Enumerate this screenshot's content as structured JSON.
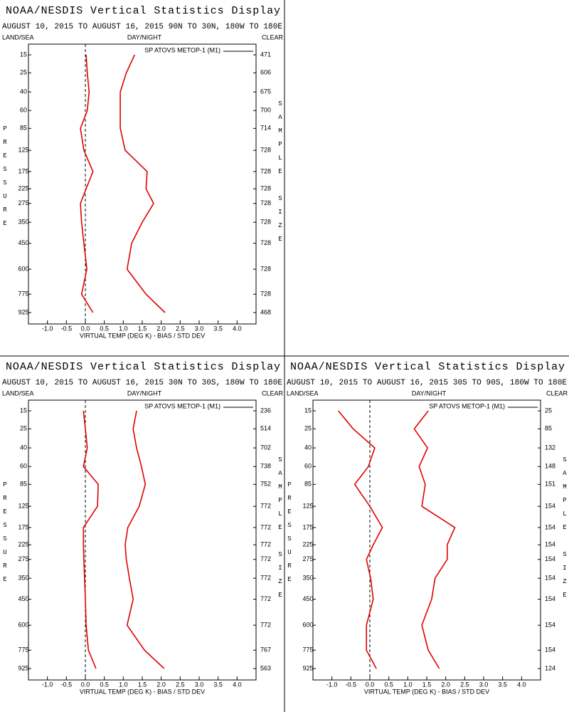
{
  "chart_data": [
    {
      "type": "line",
      "title": "NOAA/NESDIS Vertical Statistics Display",
      "subtitle": "AUGUST 10, 2015 TO AUGUST 16, 2015  90N TO 30N, 180W TO 180E",
      "labels": {
        "left": "LAND/SEA",
        "center": "DAY/NIGHT",
        "right": "CLEAR"
      },
      "ylabel": "PRESSURE",
      "y2label": "SAMPLE SIZE",
      "xlabel": "VIRTUAL TEMP (DEG K) - BIAS / STD DEV",
      "legend": "upper right",
      "categories": [
        15,
        25,
        40,
        60,
        85,
        125,
        175,
        225,
        275,
        350,
        450,
        600,
        775,
        925
      ],
      "ylim": [
        15,
        925
      ],
      "xlim": [
        -1.5,
        4.5
      ],
      "xticks": [
        {
          "value": -1,
          "label": "-1.0"
        },
        -0.5,
        {
          "value": 0,
          "label": "0.0"
        },
        0.5,
        {
          "value": 1,
          "label": "1.0"
        },
        1.5,
        {
          "value": 2,
          "label": "2.0"
        },
        2.5,
        {
          "value": 3,
          "label": "3.0"
        },
        3.5,
        {
          "value": 4,
          "label": "4.0"
        }
      ],
      "sample_size": [
        471,
        606,
        675,
        700,
        714,
        728,
        728,
        728,
        728,
        728,
        728,
        728,
        728,
        468
      ],
      "series": [
        {
          "name": "SP ATOVS METOP-1 (M1)",
          "color": "#e00000",
          "values": [
            0.02,
            0.05,
            0.1,
            0.05,
            -0.13,
            -0.04,
            0.2,
            0.02,
            -0.13,
            -0.1,
            -0.04,
            0.04,
            -0.1,
            0.2
          ]
        },
        {
          "color": "#e00000",
          "values": [
            1.3,
            1.08,
            0.92,
            0.92,
            0.92,
            1.05,
            1.63,
            1.6,
            1.8,
            1.5,
            1.22,
            1.1,
            1.6,
            2.1
          ]
        }
      ]
    },
    {
      "type": "line",
      "title": "NOAA/NESDIS Vertical Statistics Display",
      "subtitle": "AUGUST 10, 2015 TO AUGUST 16, 2015  30N TO 30S, 180W TO 180E",
      "labels": {
        "left": "LAND/SEA",
        "center": "DAY/NIGHT",
        "right": "CLEAR"
      },
      "ylabel": "PRESSURE",
      "y2label": "SAMPLE SIZE",
      "xlabel": "VIRTUAL TEMP (DEG K) - BIAS / STD DEV",
      "legend": "upper right",
      "categories": [
        15,
        25,
        40,
        60,
        85,
        125,
        175,
        225,
        275,
        350,
        450,
        600,
        775,
        925
      ],
      "ylim": [
        15,
        925
      ],
      "xlim": [
        -1.5,
        4.5
      ],
      "xticks": [
        {
          "value": -1,
          "label": "-1.0"
        },
        -0.5,
        {
          "value": 0,
          "label": "0.0"
        },
        0.5,
        {
          "value": 1,
          "label": "1.0"
        },
        1.5,
        {
          "value": 2,
          "label": "2.0"
        },
        2.5,
        {
          "value": 3,
          "label": "3.0"
        },
        3.5,
        {
          "value": 4,
          "label": "4.0"
        }
      ],
      "sample_size": [
        236,
        514,
        702,
        738,
        752,
        772,
        772,
        772,
        772,
        772,
        772,
        772,
        767,
        563
      ],
      "series": [
        {
          "name": "SP ATOVS METOP-1 (M1)",
          "color": "#e00000",
          "values": [
            -0.05,
            0,
            0.05,
            -0.05,
            0.34,
            0.32,
            -0.05,
            -0.05,
            -0.04,
            -0.02,
            0,
            0.02,
            0.08,
            0.28
          ]
        },
        {
          "color": "#e00000",
          "values": [
            1.35,
            1.26,
            1.35,
            1.48,
            1.58,
            1.42,
            1.12,
            1.05,
            1.08,
            1.16,
            1.26,
            1.1,
            1.56,
            2.08
          ]
        }
      ]
    },
    {
      "type": "line",
      "title": "NOAA/NESDIS Vertical Statistics Display",
      "subtitle": "AUGUST 10, 2015 TO AUGUST 16, 2015  30S TO 90S, 180W TO 180E",
      "labels": {
        "left": "LAND/SEA",
        "center": "DAY/NIGHT",
        "right": "CLEAR"
      },
      "ylabel": "PRESSURE",
      "y2label": "SAMPLE SIZE",
      "xlabel": "VIRTUAL TEMP (DEG K) - BIAS / STD DEV",
      "legend": "upper right",
      "categories": [
        15,
        25,
        40,
        60,
        85,
        125,
        175,
        225,
        275,
        350,
        450,
        600,
        775,
        925
      ],
      "ylim": [
        15,
        925
      ],
      "xlim": [
        -1.5,
        4.5
      ],
      "xticks": [
        {
          "value": -1,
          "label": "-1.0"
        },
        -0.5,
        {
          "value": 0,
          "label": "0.0"
        },
        0.5,
        {
          "value": 1,
          "label": "1.0"
        },
        1.5,
        {
          "value": 2,
          "label": "2.0"
        },
        2.5,
        {
          "value": 3,
          "label": "3.0"
        },
        3.5,
        {
          "value": 4,
          "label": "4.0"
        }
      ],
      "sample_size": [
        25,
        85,
        132,
        148,
        151,
        154,
        154,
        154,
        154,
        154,
        154,
        154,
        154,
        124
      ],
      "series": [
        {
          "name": "SP ATOVS METOP-1 (M1)",
          "color": "#e00000",
          "values": [
            -0.83,
            -0.44,
            0.13,
            -0.04,
            -0.4,
            0,
            0.33,
            0.09,
            -0.09,
            0.02,
            0.09,
            -0.09,
            -0.09,
            0.17
          ]
        },
        {
          "color": "#e00000",
          "values": [
            1.54,
            1.17,
            1.52,
            1.3,
            1.46,
            1.37,
            2.24,
            2.04,
            2.04,
            1.72,
            1.63,
            1.37,
            1.54,
            1.83
          ]
        }
      ]
    }
  ]
}
